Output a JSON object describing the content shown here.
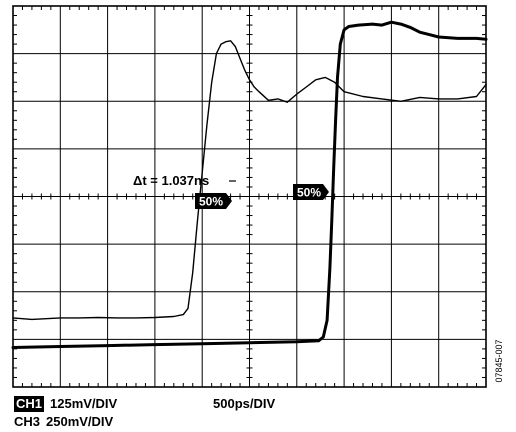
{
  "chart_data": {
    "type": "line",
    "title": "",
    "xlabel": "",
    "ylabel": "",
    "x_units": "ps",
    "y_units": "divisions",
    "xlim": [
      -2500,
      2500
    ],
    "ylim": [
      -4,
      4
    ],
    "grid": true,
    "series": [
      {
        "key": "ch1",
        "points": [
          [
            -2500,
            -2.55
          ],
          [
            -2300,
            -2.58
          ],
          [
            -2000,
            -2.55
          ],
          [
            -1800,
            -2.55
          ],
          [
            -1600,
            -2.54
          ],
          [
            -1400,
            -2.55
          ],
          [
            -1200,
            -2.55
          ],
          [
            -1000,
            -2.54
          ],
          [
            -800,
            -2.52
          ],
          [
            -700,
            -2.48
          ],
          [
            -650,
            -2.35
          ],
          [
            -600,
            -1.6
          ],
          [
            -550,
            -0.5
          ],
          [
            -500,
            0.5
          ],
          [
            -450,
            1.5
          ],
          [
            -400,
            2.4
          ],
          [
            -350,
            3.0
          ],
          [
            -300,
            3.2
          ],
          [
            -250,
            3.25
          ],
          [
            -200,
            3.27
          ],
          [
            -150,
            3.15
          ],
          [
            -100,
            2.9
          ],
          [
            -50,
            2.65
          ],
          [
            0,
            2.45
          ],
          [
            50,
            2.3
          ],
          [
            100,
            2.2
          ],
          [
            200,
            2.02
          ],
          [
            300,
            2.05
          ],
          [
            400,
            1.98
          ],
          [
            500,
            2.15
          ],
          [
            600,
            2.3
          ],
          [
            700,
            2.45
          ],
          [
            800,
            2.5
          ],
          [
            900,
            2.4
          ],
          [
            1000,
            2.2
          ],
          [
            1200,
            2.1
          ],
          [
            1400,
            2.05
          ],
          [
            1600,
            2.0
          ],
          [
            1800,
            2.08
          ],
          [
            2000,
            2.05
          ],
          [
            2200,
            2.05
          ],
          [
            2400,
            2.1
          ],
          [
            2500,
            2.35
          ]
        ]
      },
      {
        "key": "ch3",
        "points": [
          [
            -2500,
            -3.17
          ],
          [
            -2000,
            -3.15
          ],
          [
            -1500,
            -3.13
          ],
          [
            -1000,
            -3.11
          ],
          [
            -500,
            -3.09
          ],
          [
            0,
            -3.07
          ],
          [
            500,
            -3.05
          ],
          [
            730,
            -3.03
          ],
          [
            780,
            -2.95
          ],
          [
            820,
            -2.6
          ],
          [
            850,
            -1.5
          ],
          [
            870,
            -0.5
          ],
          [
            890,
            0.6
          ],
          [
            910,
            1.6
          ],
          [
            930,
            2.5
          ],
          [
            960,
            3.2
          ],
          [
            1000,
            3.5
          ],
          [
            1050,
            3.57
          ],
          [
            1150,
            3.6
          ],
          [
            1300,
            3.62
          ],
          [
            1400,
            3.6
          ],
          [
            1500,
            3.66
          ],
          [
            1600,
            3.62
          ],
          [
            1700,
            3.55
          ],
          [
            1800,
            3.45
          ],
          [
            1900,
            3.4
          ],
          [
            2000,
            3.35
          ],
          [
            2200,
            3.32
          ],
          [
            2400,
            3.32
          ],
          [
            2500,
            3.3
          ]
        ]
      }
    ],
    "annotations": {
      "delta_label": "Δt = 1.037ns",
      "marker_left": "50%",
      "marker_right": "50%"
    }
  },
  "footer": {
    "ch1_tag": "CH1",
    "ch1_scale": "125mV/DIV",
    "ch3_tag": "CH3",
    "ch3_scale": "250mV/DIV",
    "timebase": "500ps/DIV"
  },
  "figure_id": "07845-007"
}
